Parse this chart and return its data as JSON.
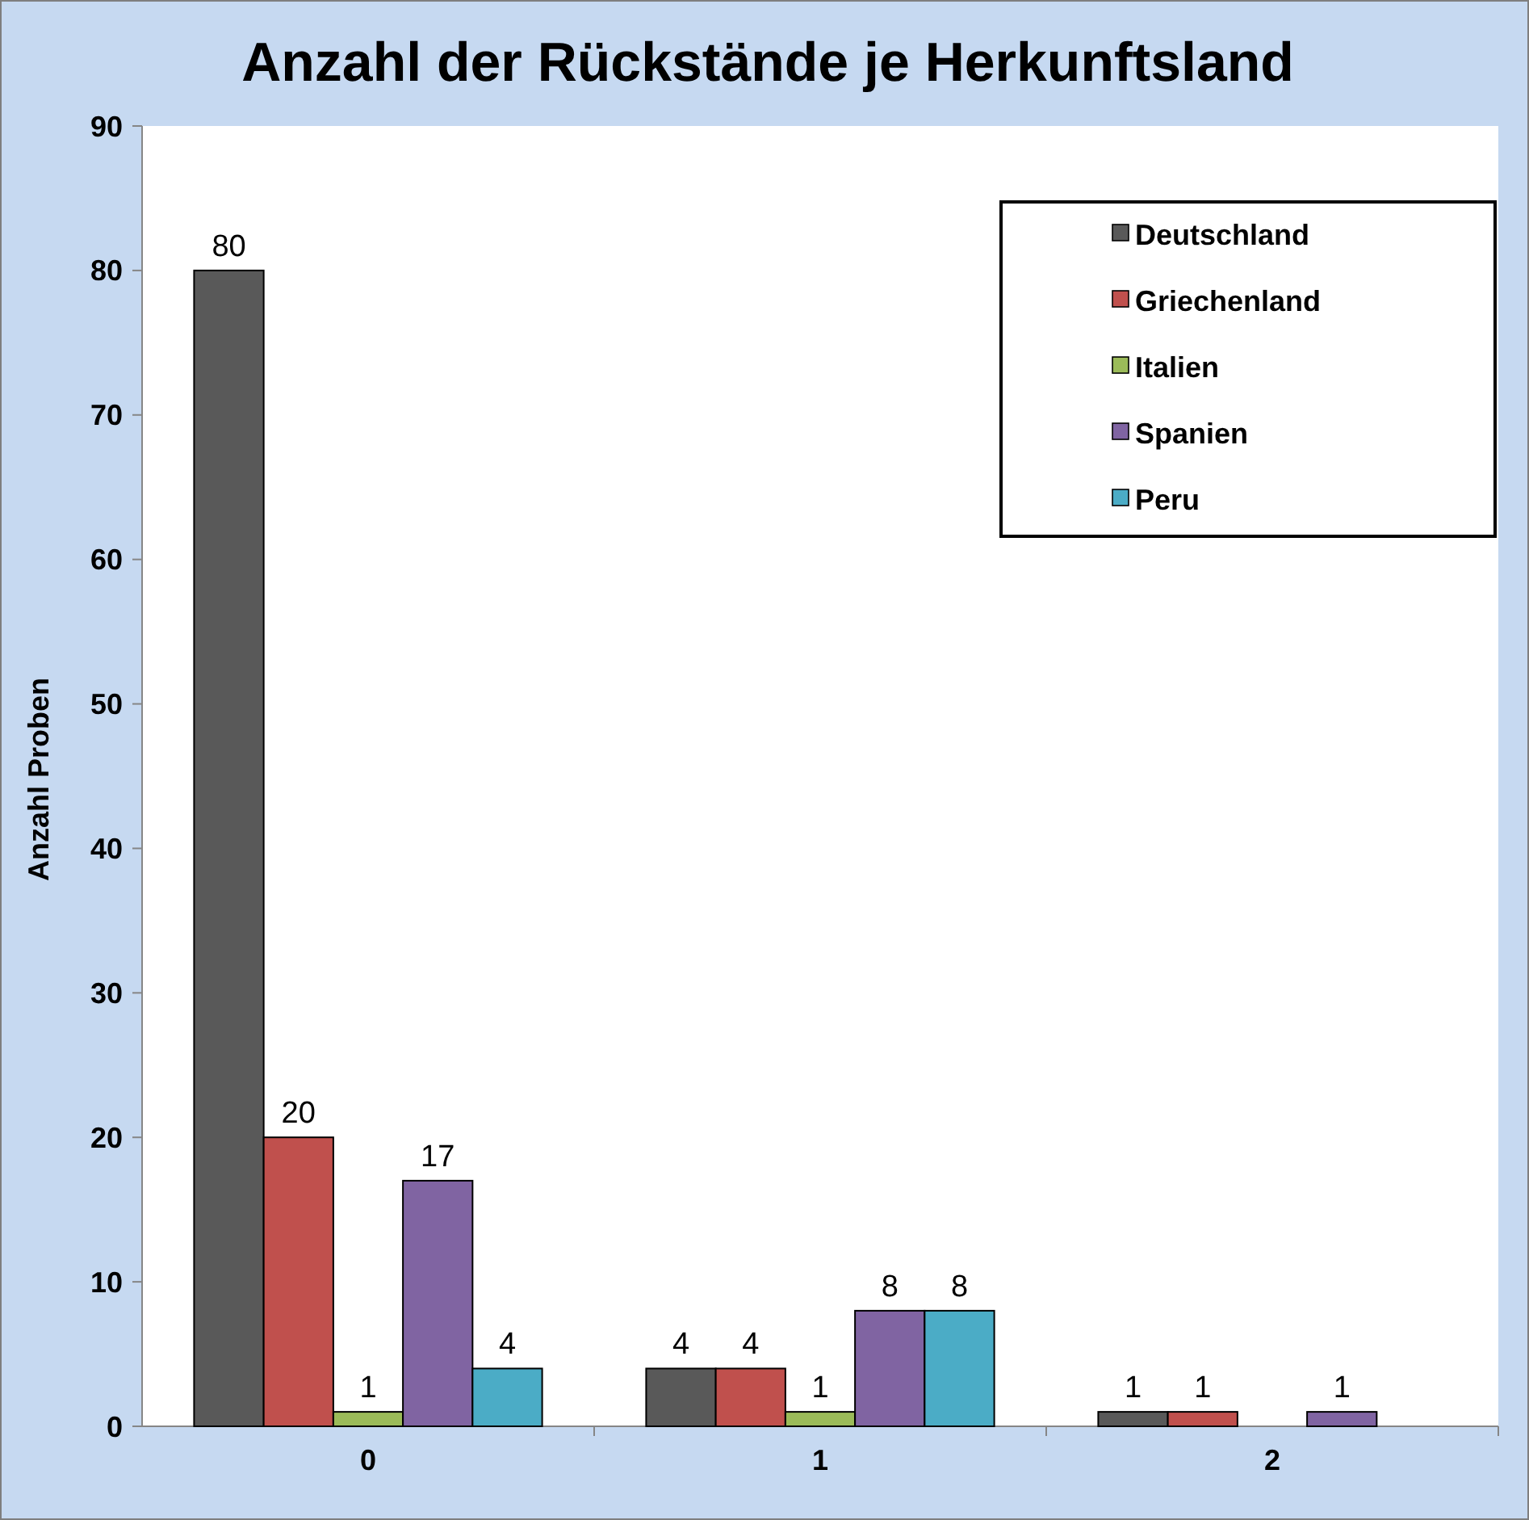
{
  "chart_data": {
    "type": "bar",
    "title": "Anzahl der Rückstände je Herkunftsland",
    "ylabel": "Anzahl Proben",
    "categories": [
      "0",
      "1",
      "2"
    ],
    "series": [
      {
        "name": "Deutschland",
        "color": "#595959",
        "values": [
          80,
          4,
          1
        ]
      },
      {
        "name": "Griechenland",
        "color": "#c0504d",
        "values": [
          20,
          4,
          1
        ]
      },
      {
        "name": "Italien",
        "color": "#9bbb59",
        "values": [
          1,
          1,
          null
        ]
      },
      {
        "name": "Spanien",
        "color": "#8064a2",
        "values": [
          17,
          8,
          1
        ]
      },
      {
        "name": "Peru",
        "color": "#4bacc6",
        "values": [
          4,
          8,
          null
        ]
      }
    ],
    "ylim": [
      0,
      90
    ],
    "yticks": [
      0,
      10,
      20,
      30,
      40,
      50,
      60,
      70,
      80,
      90
    ],
    "grid": false,
    "legend": "top right",
    "data_labels": true
  }
}
